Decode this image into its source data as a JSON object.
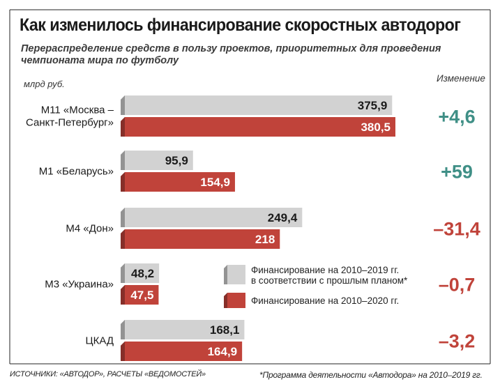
{
  "chart_data": {
    "type": "bar",
    "orientation": "horizontal",
    "title": "Как изменилось финансирование скоростных автодорог",
    "subtitle": "Перераспределение средств в пользу проектов, приоритетных для проведения чемпионата мира по футболу",
    "unit_label": "млрд руб.",
    "change_header": "Изменение",
    "categories": [
      [
        "М11 «Москва –",
        "Санкт-Петербург»"
      ],
      [
        "М1 «Беларусь»"
      ],
      [
        "М4 «Дон»"
      ],
      [
        "М3 «Украина»"
      ],
      [
        "ЦКАД"
      ]
    ],
    "series": [
      {
        "name": "Финансирование на 2010–2019 гг. в соответствии с прошлым планом*",
        "legend_lines": [
          "Финансирование на 2010–2019 гг.",
          "в соответствии с прошлым планом*"
        ],
        "color": "#d2d2d2",
        "label_color": "#1a1a1a",
        "values": [
          375.9,
          95.9,
          249.4,
          48.2,
          168.1
        ],
        "labels": [
          "375,9",
          "95,9",
          "249,4",
          "48,2",
          "168,1"
        ]
      },
      {
        "name": "Финансирование на 2010–2020 гг.",
        "legend_lines": [
          "Финансирование на 2010–2020 гг."
        ],
        "color": "#c0433a",
        "label_color": "#ffffff",
        "values": [
          380.5,
          154.9,
          218,
          47.5,
          164.9
        ],
        "labels": [
          "380,5",
          "154,9",
          "218",
          "47,5",
          "164,9"
        ]
      }
    ],
    "changes": [
      {
        "value": 4.6,
        "label": "+4,6",
        "color": "#3f8f86"
      },
      {
        "value": 59,
        "label": "+59",
        "color": "#3f8f86"
      },
      {
        "value": -31.4,
        "label": "–31,4",
        "color": "#c0433a"
      },
      {
        "value": -0.7,
        "label": "–0,7",
        "color": "#c0433a"
      },
      {
        "value": -3.2,
        "label": "–3,2",
        "color": "#c0433a"
      }
    ],
    "xlim": [
      0,
      380.5
    ]
  },
  "sources": "ИСТОЧНИКИ: «АВТОДОР», РАСЧЕТЫ «ВЕДОМОСТЕЙ»",
  "footnote": "*Программа деятельности «Автодора» на 2010–2019 гг."
}
